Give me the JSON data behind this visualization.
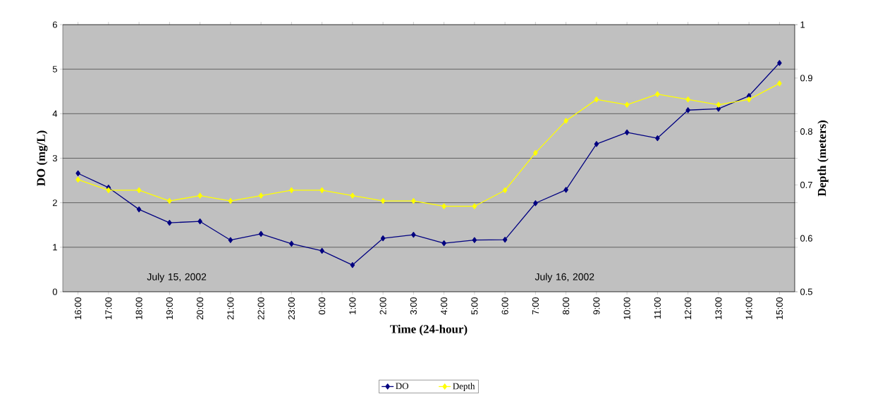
{
  "chart_data": {
    "type": "line",
    "xlabel": "Time (24-hour)",
    "ylabel": "DO (mg/L)",
    "y2label": "Depth (meters)",
    "categories": [
      "16:00",
      "17:00",
      "18:00",
      "19:00",
      "20:00",
      "21:00",
      "22:00",
      "23:00",
      "0:00",
      "1:00",
      "2:00",
      "3:00",
      "4:00",
      "5:00",
      "6:00",
      "7:00",
      "8:00",
      "9:00",
      "10:00",
      "11:00",
      "12:00",
      "13:00",
      "14:00",
      "15:00"
    ],
    "series": [
      {
        "name": "DO",
        "color": "#000080",
        "values": [
          2.66,
          2.34,
          1.85,
          1.55,
          1.58,
          1.16,
          1.3,
          1.08,
          0.92,
          0.6,
          1.2,
          1.28,
          1.09,
          1.16,
          1.17,
          1.99,
          2.29,
          3.32,
          3.58,
          3.45,
          4.08,
          4.11,
          4.4,
          5.14
        ]
      },
      {
        "name": "Depth",
        "color": "#ffff00",
        "axis": "y2",
        "values": [
          0.71,
          0.69,
          0.69,
          0.67,
          0.68,
          0.67,
          0.68,
          0.69,
          0.69,
          0.68,
          0.67,
          0.67,
          0.66,
          0.66,
          0.69,
          0.76,
          0.82,
          0.86,
          0.85,
          0.87,
          0.86,
          0.85,
          0.86,
          0.89
        ]
      }
    ],
    "ylim": [
      0,
      6
    ],
    "yticks": [
      0,
      1,
      2,
      3,
      4,
      5,
      6
    ],
    "y2lim": [
      0.5,
      1
    ],
    "y2ticks": [
      0.5,
      0.6,
      0.7,
      0.8,
      0.9,
      1
    ],
    "annotations": [
      "July 15, 2002",
      "July 16, 2002"
    ],
    "grid": "y",
    "legend": "bottom",
    "marker": "diamond",
    "line_style": "solid"
  }
}
